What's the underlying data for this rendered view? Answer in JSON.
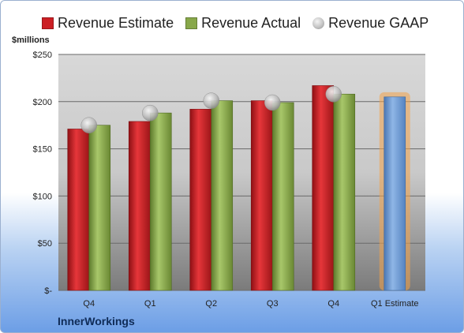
{
  "legend": {
    "estimate": "Revenue Estimate",
    "actual": "Revenue Actual",
    "gaap": "Revenue GAAP"
  },
  "unit_label": "$millions",
  "company": "InnerWorkings",
  "colors": {
    "estimate": "#cc1f24",
    "actual": "#88a84a",
    "gaap": "#bdbdbd",
    "forecast": "#6d9ad0",
    "forecast_glow": "#f2a24a"
  },
  "chart_data": {
    "type": "bar",
    "categories": [
      "Q4",
      "Q1",
      "Q2",
      "Q3",
      "Q4",
      "Q1 Estimate"
    ],
    "series": [
      {
        "name": "Revenue Estimate",
        "values": [
          171,
          179,
          192,
          201,
          217,
          null
        ]
      },
      {
        "name": "Revenue Actual",
        "values": [
          175,
          188,
          201,
          199,
          208,
          205
        ]
      },
      {
        "name": "Revenue GAAP",
        "values": [
          175,
          188,
          201,
          199,
          208,
          null
        ]
      }
    ],
    "ylim": [
      0,
      250
    ],
    "yticks": [
      {
        "value": 0,
        "label": "$-"
      },
      {
        "value": 50,
        "label": "$50"
      },
      {
        "value": 100,
        "label": "$100"
      },
      {
        "value": 150,
        "label": "$150"
      },
      {
        "value": 200,
        "label": "$200"
      },
      {
        "value": 250,
        "label": "$250"
      }
    ],
    "grid": true,
    "legend_position": "top"
  }
}
